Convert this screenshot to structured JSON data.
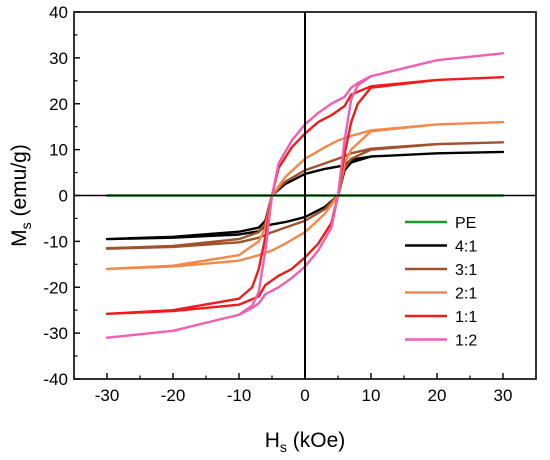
{
  "chart_data": {
    "type": "line",
    "title": "",
    "xlabel": {
      "main": "H",
      "sub": "s",
      "rest": " (kOe)"
    },
    "ylabel": {
      "main": "M",
      "sub": "s",
      "rest": " (emu/g)"
    },
    "xlim": [
      -35,
      35
    ],
    "ylim": [
      -40,
      40
    ],
    "xticks": [
      -30,
      -20,
      -10,
      0,
      10,
      20,
      30
    ],
    "yticks": [
      -40,
      -30,
      -20,
      -10,
      0,
      10,
      20,
      30,
      40
    ],
    "grid": false,
    "zero_lines": true,
    "legend_position": "lower-right",
    "series": [
      {
        "name": "PE",
        "color": "#1a9a2a",
        "x": [
          -30,
          30
        ],
        "y": [
          0,
          0
        ]
      },
      {
        "name": "4:1",
        "color": "#000000",
        "x": [
          -30,
          -20,
          -10,
          -7,
          -6,
          -5,
          -3,
          0,
          3,
          5,
          6,
          7,
          10,
          20,
          30
        ],
        "y": [
          -9.5,
          -9.0,
          -7.9,
          -7.0,
          -5.5,
          0,
          2.5,
          4.7,
          5.8,
          6.3,
          6.6,
          7.8,
          8.5,
          9.2,
          9.5
        ],
        "return_x": [
          30,
          20,
          10,
          7,
          6,
          5,
          3,
          0,
          -3,
          -5,
          -6,
          -7,
          -10,
          -20,
          -30
        ],
        "return_y": [
          9.5,
          9.2,
          8.5,
          7.2,
          5.5,
          0,
          -2.5,
          -4.7,
          -5.8,
          -6.3,
          -6.6,
          -7.8,
          -8.5,
          -9.2,
          -9.5
        ]
      },
      {
        "name": "3:1",
        "color": "#a0522d",
        "x": [
          -30,
          -20,
          -10,
          -7,
          -6,
          -5,
          -3,
          0,
          3,
          5,
          7,
          10,
          20,
          30
        ],
        "y": [
          -11.5,
          -11.0,
          -9.5,
          -8.0,
          -6.0,
          0,
          3.0,
          5.5,
          7.0,
          8.0,
          9.2,
          10.2,
          11.2,
          11.6
        ],
        "return_x": [
          30,
          20,
          10,
          7,
          6,
          5,
          3,
          0,
          -3,
          -5,
          -7,
          -10,
          -20,
          -30
        ],
        "return_y": [
          11.6,
          11.2,
          10.0,
          8.0,
          6.0,
          0,
          -3.0,
          -5.5,
          -7.0,
          -8.0,
          -9.2,
          -10.2,
          -11.2,
          -11.6
        ]
      },
      {
        "name": "2:1",
        "color": "#f4884a",
        "x": [
          -30,
          -20,
          -10,
          -7,
          -6,
          -5,
          -3,
          0,
          3,
          5,
          7,
          10,
          20,
          30
        ],
        "y": [
          -16.0,
          -15.3,
          -13.0,
          -10.0,
          -7.0,
          0,
          4.0,
          8.0,
          10.5,
          12.0,
          13.0,
          14.2,
          15.5,
          16.0
        ],
        "return_x": [
          30,
          20,
          10,
          7,
          6,
          5,
          3,
          0,
          -3,
          -5,
          -7,
          -10,
          -20,
          -30
        ],
        "return_y": [
          16.0,
          15.5,
          14.0,
          10.0,
          7.0,
          0,
          -4.0,
          -8.0,
          -10.5,
          -12.0,
          -13.0,
          -14.2,
          -15.5,
          -16.0
        ]
      },
      {
        "name": "1:1",
        "color": "#ee1c1c",
        "x": [
          -30,
          -20,
          -10,
          -8,
          -7,
          -6,
          -5,
          -4,
          -2,
          0,
          2,
          4,
          5,
          6,
          7,
          10,
          20,
          30
        ],
        "y": [
          -25.8,
          -25.0,
          -22.5,
          -20.0,
          -16.0,
          -9.0,
          0,
          6.0,
          10.5,
          13.5,
          16.0,
          17.5,
          18.5,
          19.5,
          22.0,
          23.8,
          25.2,
          25.8
        ],
        "return_x": [
          30,
          20,
          10,
          8,
          7,
          6,
          5,
          4,
          2,
          0,
          -2,
          -4,
          -5,
          -6,
          -7,
          -10,
          -20,
          -30
        ],
        "return_y": [
          25.8,
          25.2,
          23.5,
          20.0,
          16.0,
          9.0,
          0,
          -6.0,
          -10.5,
          -13.5,
          -16.0,
          -17.5,
          -18.5,
          -19.5,
          -22.0,
          -23.8,
          -25.2,
          -25.8
        ]
      },
      {
        "name": "1:2",
        "color": "#f25fb2",
        "x": [
          -30,
          -20,
          -10,
          -8,
          -7,
          -6,
          -5,
          -4,
          -2,
          0,
          2,
          4,
          6,
          7,
          8,
          10,
          20,
          30
        ],
        "y": [
          -31.0,
          -29.5,
          -26.0,
          -24.0,
          -21.0,
          -12.0,
          0,
          7.0,
          12.0,
          15.5,
          18.0,
          20.0,
          21.5,
          23.5,
          24.5,
          26.0,
          29.5,
          31.0
        ],
        "return_x": [
          30,
          20,
          10,
          8,
          7,
          6,
          5,
          4,
          2,
          0,
          -2,
          -4,
          -6,
          -7,
          -8,
          -10,
          -20,
          -30
        ],
        "return_y": [
          31.0,
          29.5,
          26.0,
          24.0,
          21.0,
          12.0,
          0,
          -7.0,
          -12.0,
          -15.5,
          -18.0,
          -20.0,
          -21.5,
          -23.5,
          -24.5,
          -26.0,
          -29.5,
          -31.0
        ]
      }
    ]
  }
}
